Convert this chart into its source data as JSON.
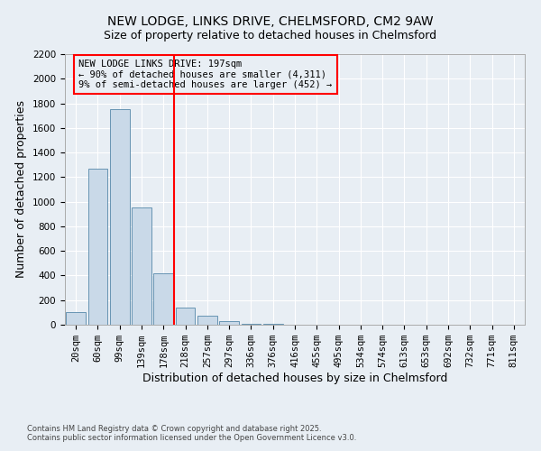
{
  "title": "NEW LODGE, LINKS DRIVE, CHELMSFORD, CM2 9AW",
  "subtitle": "Size of property relative to detached houses in Chelmsford",
  "xlabel": "Distribution of detached houses by size in Chelmsford",
  "ylabel": "Number of detached properties",
  "bin_labels": [
    "20sqm",
    "60sqm",
    "99sqm",
    "139sqm",
    "178sqm",
    "218sqm",
    "257sqm",
    "297sqm",
    "336sqm",
    "376sqm",
    "416sqm",
    "455sqm",
    "495sqm",
    "534sqm",
    "574sqm",
    "613sqm",
    "653sqm",
    "692sqm",
    "732sqm",
    "771sqm",
    "811sqm"
  ],
  "bar_heights": [
    100,
    1270,
    1750,
    950,
    420,
    140,
    70,
    30,
    10,
    5,
    2,
    1,
    0,
    0,
    0,
    0,
    0,
    0,
    0,
    0,
    0
  ],
  "bar_color": "#c9d9e8",
  "bar_edge_color": "#5588aa",
  "vline_x": 4.5,
  "vline_color": "red",
  "annotation_text": "NEW LODGE LINKS DRIVE: 197sqm\n← 90% of detached houses are smaller (4,311)\n9% of semi-detached houses are larger (452) →",
  "annotation_box_color": "red",
  "ylim": [
    0,
    2200
  ],
  "yticks": [
    0,
    200,
    400,
    600,
    800,
    1000,
    1200,
    1400,
    1600,
    1800,
    2000,
    2200
  ],
  "footnote1": "Contains HM Land Registry data © Crown copyright and database right 2025.",
  "footnote2": "Contains public sector information licensed under the Open Government Licence v3.0.",
  "bg_color": "#e8eef4",
  "grid_color": "#ffffff",
  "title_fontsize": 10,
  "subtitle_fontsize": 9,
  "axis_label_fontsize": 9,
  "tick_fontsize": 7.5,
  "annot_fontsize": 7.5
}
